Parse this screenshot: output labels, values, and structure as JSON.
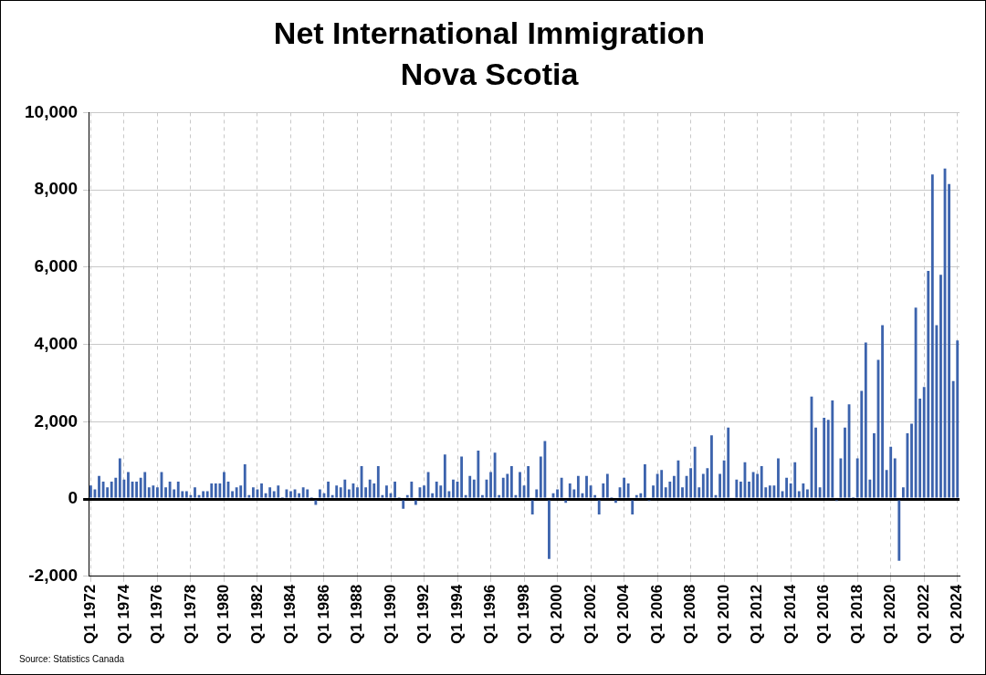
{
  "chart_data": {
    "type": "bar",
    "title": [
      "Net International Immigration",
      "Nova Scotia"
    ],
    "source": "Source: Statistics Canada",
    "categories": [
      "Q1 1972",
      null,
      null,
      null,
      null,
      null,
      null,
      null,
      "Q1 1974",
      null,
      null,
      null,
      null,
      null,
      null,
      null,
      "Q1 1976",
      null,
      null,
      null,
      null,
      null,
      null,
      null,
      "Q1 1978",
      null,
      null,
      null,
      null,
      null,
      null,
      null,
      "Q1 1980",
      null,
      null,
      null,
      null,
      null,
      null,
      null,
      "Q1 1982",
      null,
      null,
      null,
      null,
      null,
      null,
      null,
      "Q1 1984",
      null,
      null,
      null,
      null,
      null,
      null,
      null,
      "Q1 1986",
      null,
      null,
      null,
      null,
      null,
      null,
      null,
      "Q1 1988",
      null,
      null,
      null,
      null,
      null,
      null,
      null,
      "Q1 1990",
      null,
      null,
      null,
      null,
      null,
      null,
      null,
      "Q1 1992",
      null,
      null,
      null,
      null,
      null,
      null,
      null,
      "Q1 1994",
      null,
      null,
      null,
      null,
      null,
      null,
      null,
      "Q1 1996",
      null,
      null,
      null,
      null,
      null,
      null,
      null,
      "Q1 1998",
      null,
      null,
      null,
      null,
      null,
      null,
      null,
      "Q1 2000",
      null,
      null,
      null,
      null,
      null,
      null,
      null,
      "Q1 2002",
      null,
      null,
      null,
      null,
      null,
      null,
      null,
      "Q1 2004",
      null,
      null,
      null,
      null,
      null,
      null,
      null,
      "Q1 2006",
      null,
      null,
      null,
      null,
      null,
      null,
      null,
      "Q1 2008",
      null,
      null,
      null,
      null,
      null,
      null,
      null,
      "Q1 2010",
      null,
      null,
      null,
      null,
      null,
      null,
      null,
      "Q1 2012",
      null,
      null,
      null,
      null,
      null,
      null,
      null,
      "Q1 2014",
      null,
      null,
      null,
      null,
      null,
      null,
      null,
      "Q1 2016",
      null,
      null,
      null,
      null,
      null,
      null,
      null,
      "Q1 2018",
      null,
      null,
      null,
      null,
      null,
      null,
      null,
      "Q1 2020",
      null,
      null,
      null,
      null,
      null,
      null,
      null,
      "Q1 2022",
      null,
      null,
      null,
      null,
      null,
      null,
      null,
      "Q1 2024"
    ],
    "values": [
      350,
      250,
      600,
      450,
      300,
      450,
      550,
      1050,
      500,
      700,
      450,
      450,
      550,
      700,
      300,
      350,
      300,
      700,
      300,
      450,
      250,
      450,
      200,
      200,
      100,
      300,
      100,
      200,
      200,
      400,
      400,
      400,
      700,
      450,
      200,
      300,
      350,
      900,
      100,
      300,
      250,
      400,
      150,
      300,
      200,
      350,
      50,
      250,
      200,
      250,
      150,
      300,
      250,
      50,
      -150,
      250,
      150,
      450,
      100,
      350,
      300,
      500,
      250,
      400,
      300,
      850,
      300,
      500,
      400,
      850,
      100,
      350,
      150,
      450,
      50,
      -250,
      100,
      450,
      -150,
      300,
      350,
      700,
      150,
      450,
      350,
      1150,
      200,
      500,
      450,
      1100,
      100,
      600,
      500,
      1250,
      100,
      500,
      700,
      1200,
      100,
      550,
      650,
      850,
      100,
      700,
      350,
      850,
      -400,
      250,
      1100,
      1500,
      -1550,
      150,
      250,
      550,
      -100,
      400,
      250,
      600,
      150,
      600,
      350,
      100,
      -400,
      400,
      650,
      50,
      -100,
      300,
      550,
      400,
      -400,
      100,
      150,
      900,
      -50,
      350,
      650,
      750,
      300,
      450,
      600,
      1000,
      300,
      600,
      800,
      1350,
      300,
      650,
      800,
      1650,
      100,
      650,
      1000,
      1850,
      0,
      500,
      450,
      950,
      450,
      700,
      650,
      850,
      300,
      350,
      350,
      1050,
      200,
      550,
      400,
      950,
      200,
      400,
      250,
      2650,
      1850,
      300,
      2100,
      2050,
      2550,
      -50,
      1050,
      1850,
      2450,
      50,
      1050,
      2800,
      4050,
      500,
      1700,
      3600,
      4500,
      750,
      1350,
      1050,
      -1600,
      300,
      1700,
      1950,
      4950,
      2600,
      2900,
      5900,
      8400,
      4500,
      5800,
      8550,
      8150,
      3050,
      4100
    ],
    "color": "#3c63ad",
    "ylim": [
      -2000,
      10000
    ],
    "yticks": [
      {
        "value": -2000,
        "label": "-2,000"
      },
      0,
      {
        "value": 2000,
        "label": "2,000"
      },
      {
        "value": 4000,
        "label": "4,000"
      },
      {
        "value": 6000,
        "label": "6,000"
      },
      {
        "value": 8000,
        "label": "8,000"
      },
      {
        "value": 10000,
        "label": "10,000"
      }
    ],
    "grid": true
  }
}
